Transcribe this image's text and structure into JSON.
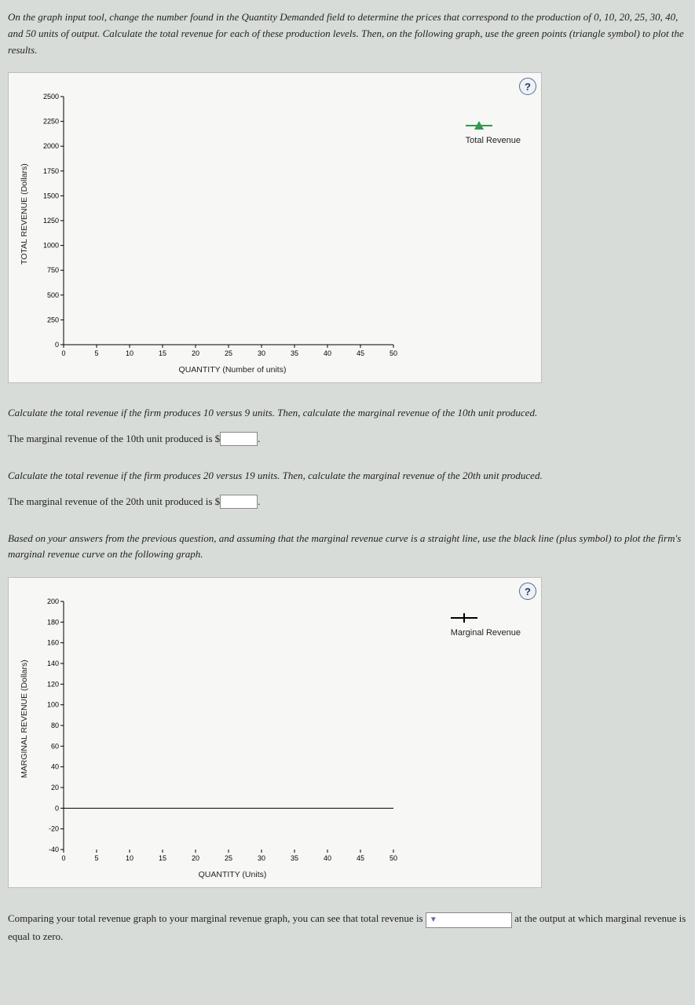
{
  "intro": "On the graph input tool, change the number found in the Quantity Demanded field to determine the prices that correspond to the production of 0, 10, 20, 25, 30, 40, and 50 units of output. Calculate the total revenue for each of these production levels. Then, on the following graph, use the green points (triangle symbol) to plot the results.",
  "chart1": {
    "type": "scatter-template",
    "ylabel": "TOTAL REVENUE (Dollars)",
    "xlabel": "QUANTITY (Number of units)",
    "legend_label": "Total Revenue",
    "legend_symbol_color": "#2e9b4f",
    "xlim": [
      0,
      50
    ],
    "xtick_step": 5,
    "ylim": [
      0,
      2500
    ],
    "ytick_step": 250,
    "yticks": [
      0,
      250,
      500,
      750,
      1000,
      1250,
      1500,
      1750,
      2000,
      2250,
      2500
    ],
    "xticks": [
      0,
      5,
      10,
      15,
      20,
      25,
      30,
      35,
      40,
      45,
      50
    ],
    "background_color": "#f7f7f5",
    "axis_color": "#000000",
    "grid_color": "#e0e0e0",
    "label_fontsize": 10.5,
    "tick_fontsize": 9,
    "help_label": "?"
  },
  "q1": {
    "prompt": "Calculate the total revenue if the firm produces 10 versus 9 units. Then, calculate the marginal revenue of the 10th unit produced.",
    "line": "The marginal revenue of the 10th unit produced is",
    "prefix": "$",
    "value": "",
    "suffix": "."
  },
  "q2": {
    "prompt": "Calculate the total revenue if the firm produces 20 versus 19 units. Then, calculate the marginal revenue of the 20th unit produced.",
    "line": "The marginal revenue of the 20th unit produced is",
    "prefix": "$",
    "value": "",
    "suffix": "."
  },
  "mr_intro": "Based on your answers from the previous question, and assuming that the marginal revenue curve is a straight line, use the black line (plus symbol) to plot the firm's marginal revenue curve on the following graph.",
  "chart2": {
    "type": "line-template",
    "ylabel": "MARGINAL REVENUE (Dollars)",
    "xlabel": "QUANTITY (Units)",
    "legend_label": "Marginal Revenue",
    "legend_symbol_color": "#000000",
    "xlim": [
      0,
      50
    ],
    "xtick_step": 5,
    "ylim": [
      -40,
      200
    ],
    "ytick_step": 20,
    "yticks": [
      -40,
      -20,
      0,
      20,
      40,
      60,
      80,
      100,
      120,
      140,
      160,
      180,
      200
    ],
    "xticks": [
      0,
      5,
      10,
      15,
      20,
      25,
      30,
      35,
      40,
      45,
      50
    ],
    "background_color": "#f7f7f5",
    "axis_color": "#000000",
    "grid_color": "#e0e0e0",
    "label_fontsize": 10.5,
    "tick_fontsize": 9,
    "help_label": "?"
  },
  "final": {
    "pre": "Comparing your total revenue graph to your marginal revenue graph, you can see that total revenue is ",
    "dropdown_placeholder": "",
    "post": " at the output at which marginal revenue is equal to zero."
  }
}
